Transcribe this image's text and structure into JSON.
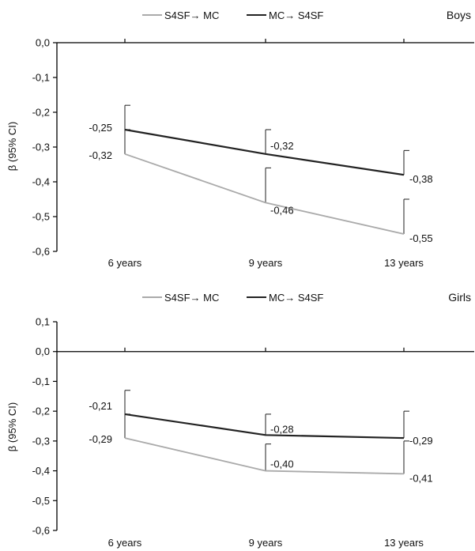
{
  "legend_entries": [
    {
      "label": "S4SF→ MC",
      "color": "#aaaaaa"
    },
    {
      "label": "MC→ S4SF",
      "color": "#222222"
    }
  ],
  "chart_data": [
    {
      "type": "line",
      "title": "Boys",
      "xlabel": "",
      "ylabel": "β (95% CI)",
      "categories": [
        "6 years",
        "9 years",
        "13 years"
      ],
      "ylim": [
        -0.6,
        0.0
      ],
      "yticks": [
        0.0,
        -0.1,
        -0.2,
        -0.3,
        -0.4,
        -0.5,
        -0.6
      ],
      "ytick_labels": [
        "0,0",
        "-0,1",
        "-0,2",
        "-0,3",
        "-0,4",
        "-0,5",
        "-0,6"
      ],
      "legend_position": "top",
      "series": [
        {
          "name": "S4SF→ MC",
          "color": "#aaaaaa",
          "values": [
            -0.32,
            -0.46,
            -0.55
          ],
          "value_labels": [
            "-0,32",
            "-0,46",
            "-0,55"
          ],
          "ci_upper": [
            -0.25,
            -0.36,
            -0.45
          ]
        },
        {
          "name": "MC→ S4SF",
          "color": "#222222",
          "values": [
            -0.25,
            -0.32,
            -0.38
          ],
          "value_labels": [
            "-0,25",
            "-0,32",
            "-0,38"
          ],
          "ci_upper": [
            -0.18,
            -0.25,
            -0.31
          ]
        }
      ]
    },
    {
      "type": "line",
      "title": "Girls",
      "xlabel": "",
      "ylabel": "β (95% CI)",
      "categories": [
        "6 years",
        "9 years",
        "13 years"
      ],
      "ylim": [
        -0.6,
        0.1
      ],
      "yticks": [
        0.1,
        0.0,
        -0.1,
        -0.2,
        -0.3,
        -0.4,
        -0.5,
        -0.6
      ],
      "ytick_labels": [
        "0,1",
        "0,0",
        "-0,1",
        "-0,2",
        "-0,3",
        "-0,4",
        "-0,5",
        "-0,6"
      ],
      "legend_position": "top",
      "series": [
        {
          "name": "S4SF→ MC",
          "color": "#aaaaaa",
          "values": [
            -0.29,
            -0.4,
            -0.41
          ],
          "value_labels": [
            "-0,29",
            "-0,40",
            "-0,41"
          ],
          "ci_upper": [
            -0.21,
            -0.31,
            -0.3
          ]
        },
        {
          "name": "MC→ S4SF",
          "color": "#222222",
          "values": [
            -0.21,
            -0.28,
            -0.29
          ],
          "value_labels": [
            "-0,21",
            "-0,28",
            "-0,29"
          ],
          "ci_upper": [
            -0.13,
            -0.21,
            -0.2
          ]
        }
      ]
    }
  ]
}
